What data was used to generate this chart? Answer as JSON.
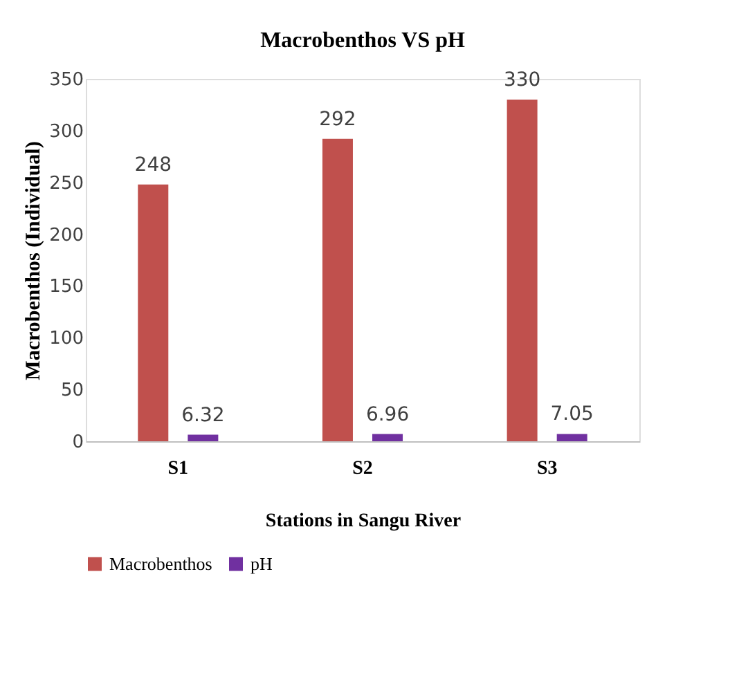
{
  "chart_data": {
    "type": "bar",
    "title": "Macrobenthos VS pH",
    "xlabel": "Stations in  Sangu River",
    "ylabel": "Macrobenthos (Individual)",
    "categories": [
      "S1",
      "S2",
      "S3"
    ],
    "series": [
      {
        "name": "Macrobenthos",
        "color": "#c0504d",
        "values": [
          248,
          292,
          330
        ]
      },
      {
        "name": "pH",
        "color": "#7030a0",
        "values": [
          6.32,
          6.96,
          7.05
        ]
      }
    ],
    "ylim": [
      0,
      350
    ],
    "yticks": [
      0,
      50,
      100,
      150,
      200,
      250,
      300,
      350
    ],
    "grid": false,
    "legend": "bottom",
    "data_labels": true
  }
}
